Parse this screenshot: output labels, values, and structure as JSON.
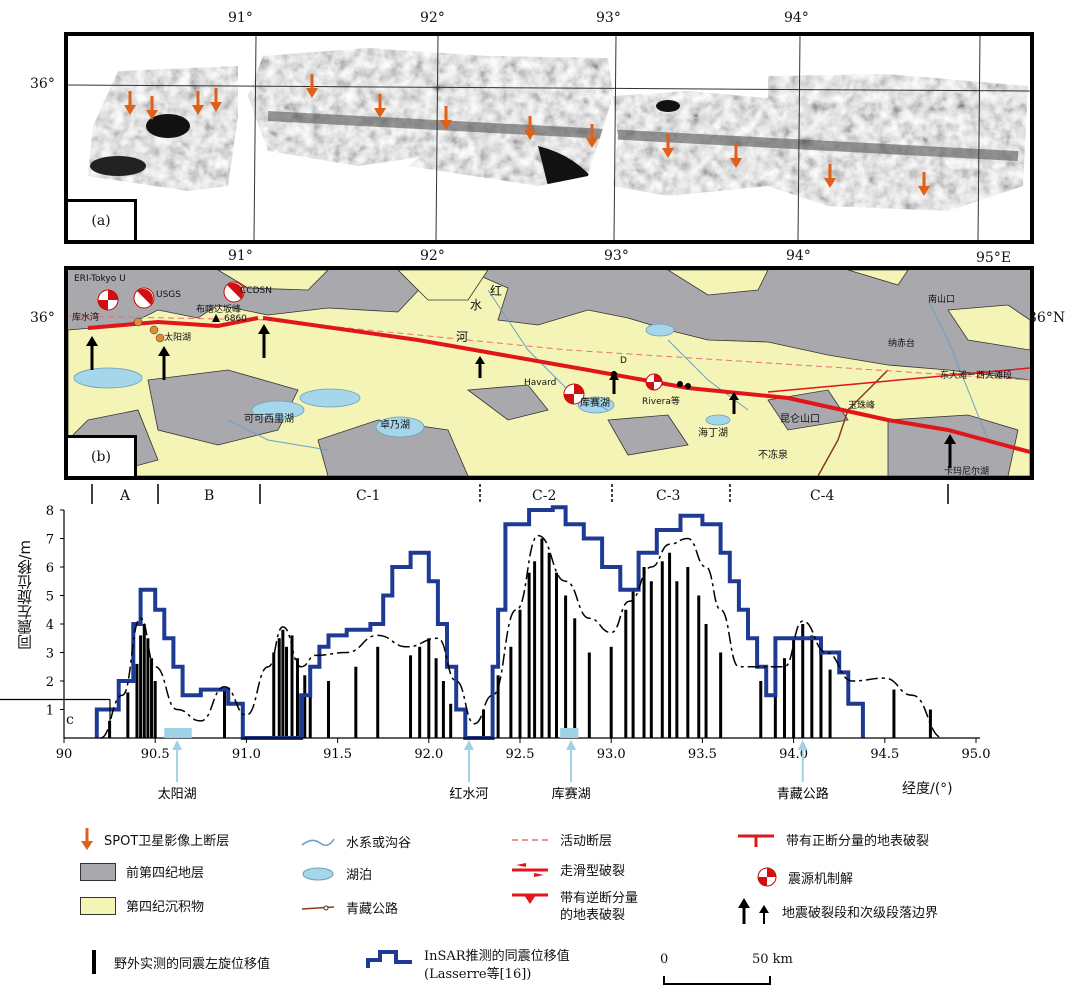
{
  "panel_a": {
    "label": "(a)",
    "lon_labels": [
      "91°",
      "92°",
      "93°",
      "94°"
    ],
    "lat_label": "36°",
    "arrow_color": "#e0601a"
  },
  "panel_b": {
    "label": "(b)",
    "lon_labels": [
      "91°",
      "92°",
      "93°",
      "94°",
      "95°E"
    ],
    "lat_left": "36°",
    "lat_right": "36°N",
    "place_names": {
      "kushuiwan": "库水湾",
      "taiyanghu": "太阳湖",
      "bukadaban": "布喀达坂峰",
      "peak_height": "6860",
      "kekexili": "可可西里湖",
      "zhuonaihu": "卓乃湖",
      "hongshui_hong": "红",
      "hongshui_shui": "水",
      "hongshui_he": "河",
      "kusaihu": "库赛湖",
      "haidinghu": "海丁湖",
      "kunlunshankou": "昆仑山口",
      "budongquan": "不冻泉",
      "nashanmouth": "南山口",
      "nachitai": "纳赤台",
      "dongdatan": "东大滩－西大滩段",
      "yuzhufeng": "玉珠峰",
      "kamaerni": "卡玛尼尔湖",
      "label_d": "D"
    },
    "mechanisms": {
      "eri": "ERI-Tokyo U",
      "usgs": "USGS",
      "ccdsn": "CCDSN",
      "havard": "Havard",
      "rivera": "Rivera等"
    },
    "colors": {
      "gray": "#a9a8ad",
      "yellow": "#f4f4b6",
      "lake": "#a6d6ea",
      "fault": "#e0161b"
    }
  },
  "segments": {
    "labels": [
      "A",
      "B",
      "C-1",
      "C-2",
      "C-3",
      "C-4"
    ]
  },
  "chart_data": {
    "type": "line",
    "ylabel": "同震左旋位移/m",
    "xlabel": "经度/(°)",
    "xlim": [
      90,
      95
    ],
    "ylim": [
      0,
      8
    ],
    "x_ticks": [
      "90",
      "90.5",
      "91.0",
      "91.5",
      "92.0",
      "92.5",
      "93.0",
      "93.5",
      "94.0",
      "94.5",
      "95.0"
    ],
    "y_ticks": [
      "1",
      "2",
      "3",
      "4",
      "5",
      "6",
      "7",
      "8"
    ],
    "c_label": "c",
    "landmarks": [
      {
        "label": "太阳湖",
        "lon": 90.62
      },
      {
        "label": "红水河",
        "lon": 92.22
      },
      {
        "label": "库赛湖",
        "lon": 92.78
      },
      {
        "label": "青藏公路",
        "lon": 94.05
      }
    ],
    "insar": [
      [
        90.18,
        0
      ],
      [
        90.18,
        1
      ],
      [
        90.3,
        1
      ],
      [
        90.3,
        2
      ],
      [
        90.38,
        2
      ],
      [
        90.38,
        4
      ],
      [
        90.42,
        4
      ],
      [
        90.42,
        5.2
      ],
      [
        90.5,
        5.2
      ],
      [
        90.5,
        4.5
      ],
      [
        90.55,
        4.5
      ],
      [
        90.55,
        3.5
      ],
      [
        90.6,
        3.5
      ],
      [
        90.6,
        2.5
      ],
      [
        90.65,
        2.5
      ],
      [
        90.65,
        1.5
      ],
      [
        90.75,
        1.5
      ],
      [
        90.75,
        1.7
      ],
      [
        90.9,
        1.7
      ],
      [
        90.9,
        1.2
      ],
      [
        90.98,
        1.2
      ],
      [
        90.98,
        0
      ],
      [
        91.3,
        0
      ],
      [
        91.3,
        1.5
      ],
      [
        91.35,
        1.5
      ],
      [
        91.35,
        2.5
      ],
      [
        91.4,
        2.5
      ],
      [
        91.4,
        3.2
      ],
      [
        91.45,
        3.2
      ],
      [
        91.45,
        3.6
      ],
      [
        91.55,
        3.6
      ],
      [
        91.55,
        3.8
      ],
      [
        91.68,
        3.8
      ],
      [
        91.68,
        4.0
      ],
      [
        91.75,
        4.0
      ],
      [
        91.75,
        5.0
      ],
      [
        91.8,
        5.0
      ],
      [
        91.8,
        6.0
      ],
      [
        91.9,
        6.0
      ],
      [
        91.9,
        6.5
      ],
      [
        92.0,
        6.5
      ],
      [
        92.0,
        5.5
      ],
      [
        92.05,
        5.5
      ],
      [
        92.05,
        4.0
      ],
      [
        92.1,
        4.0
      ],
      [
        92.1,
        2.5
      ],
      [
        92.15,
        2.5
      ],
      [
        92.15,
        1.0
      ],
      [
        92.2,
        1.0
      ],
      [
        92.2,
        0
      ],
      [
        92.35,
        0
      ],
      [
        92.35,
        2.5
      ],
      [
        92.38,
        2.5
      ],
      [
        92.38,
        4.5
      ],
      [
        92.42,
        4.5
      ],
      [
        92.42,
        7.5
      ],
      [
        92.55,
        7.5
      ],
      [
        92.55,
        8.0
      ],
      [
        92.68,
        8.0
      ],
      [
        92.68,
        8.1
      ],
      [
        92.75,
        8.1
      ],
      [
        92.75,
        7.5
      ],
      [
        92.85,
        7.5
      ],
      [
        92.85,
        7.0
      ],
      [
        92.95,
        7.0
      ],
      [
        92.95,
        6.0
      ],
      [
        93.05,
        6.0
      ],
      [
        93.05,
        5.2
      ],
      [
        93.15,
        5.2
      ],
      [
        93.15,
        6.5
      ],
      [
        93.25,
        6.5
      ],
      [
        93.25,
        7.3
      ],
      [
        93.38,
        7.3
      ],
      [
        93.38,
        7.8
      ],
      [
        93.5,
        7.8
      ],
      [
        93.5,
        7.5
      ],
      [
        93.6,
        7.5
      ],
      [
        93.6,
        6.5
      ],
      [
        93.65,
        6.5
      ],
      [
        93.65,
        5.5
      ],
      [
        93.7,
        5.5
      ],
      [
        93.7,
        4.5
      ],
      [
        93.75,
        4.5
      ],
      [
        93.75,
        3.5
      ],
      [
        93.8,
        3.5
      ],
      [
        93.8,
        2.5
      ],
      [
        93.85,
        2.5
      ],
      [
        93.85,
        1.5
      ],
      [
        93.9,
        1.5
      ],
      [
        93.9,
        3.5
      ],
      [
        94.15,
        3.5
      ],
      [
        94.15,
        3.0
      ],
      [
        94.25,
        3.0
      ],
      [
        94.25,
        2.3
      ],
      [
        94.3,
        2.3
      ],
      [
        94.3,
        1.2
      ],
      [
        94.38,
        1.2
      ],
      [
        94.38,
        0
      ]
    ],
    "model": [
      [
        90.2,
        0
      ],
      [
        90.32,
        1.5
      ],
      [
        90.42,
        4.2
      ],
      [
        90.5,
        2.5
      ],
      [
        90.62,
        1.0
      ],
      [
        90.75,
        0.6
      ],
      [
        90.88,
        1.8
      ],
      [
        91.0,
        0.8
      ],
      [
        91.12,
        2.5
      ],
      [
        91.2,
        3.9
      ],
      [
        91.3,
        2.5
      ],
      [
        91.38,
        2.9
      ],
      [
        91.55,
        3.0
      ],
      [
        91.72,
        3.6
      ],
      [
        91.88,
        3.2
      ],
      [
        92.05,
        3.5
      ],
      [
        92.15,
        2.0
      ],
      [
        92.25,
        0.5
      ],
      [
        92.35,
        1.5
      ],
      [
        92.48,
        4.5
      ],
      [
        92.6,
        7.1
      ],
      [
        92.75,
        5.5
      ],
      [
        92.88,
        4.2
      ],
      [
        93.0,
        3.7
      ],
      [
        93.1,
        4.8
      ],
      [
        93.22,
        6.0
      ],
      [
        93.32,
        6.8
      ],
      [
        93.42,
        7.0
      ],
      [
        93.52,
        6.0
      ],
      [
        93.6,
        4.5
      ],
      [
        93.7,
        2.5
      ],
      [
        93.82,
        2.5
      ],
      [
        93.95,
        2.5
      ],
      [
        94.05,
        4.1
      ],
      [
        94.18,
        3.0
      ],
      [
        94.32,
        2.0
      ],
      [
        94.5,
        2.1
      ],
      [
        94.65,
        1.5
      ],
      [
        94.82,
        0
      ]
    ],
    "field": [
      [
        90.25,
        0.6
      ],
      [
        90.35,
        1.6
      ],
      [
        90.4,
        2.6
      ],
      [
        90.42,
        3.6
      ],
      [
        90.44,
        4.0
      ],
      [
        90.46,
        3.5
      ],
      [
        90.48,
        2.8
      ],
      [
        90.5,
        2.0
      ],
      [
        90.88,
        1.7
      ],
      [
        91.15,
        3.0
      ],
      [
        91.18,
        3.5
      ],
      [
        91.2,
        3.8
      ],
      [
        91.22,
        3.2
      ],
      [
        91.25,
        3.6
      ],
      [
        91.28,
        2.8
      ],
      [
        91.32,
        2.2
      ],
      [
        91.35,
        1.5
      ],
      [
        91.45,
        2.0
      ],
      [
        91.6,
        2.5
      ],
      [
        91.72,
        3.2
      ],
      [
        91.9,
        2.9
      ],
      [
        91.95,
        3.2
      ],
      [
        92.0,
        3.5
      ],
      [
        92.04,
        2.8
      ],
      [
        92.08,
        2.0
      ],
      [
        92.12,
        1.2
      ],
      [
        92.3,
        1.0
      ],
      [
        92.38,
        2.2
      ],
      [
        92.45,
        3.2
      ],
      [
        92.5,
        4.5
      ],
      [
        92.55,
        5.8
      ],
      [
        92.58,
        6.2
      ],
      [
        92.62,
        7.0
      ],
      [
        92.66,
        6.5
      ],
      [
        92.7,
        5.8
      ],
      [
        92.75,
        5.0
      ],
      [
        92.8,
        4.2
      ],
      [
        92.88,
        3.0
      ],
      [
        93.0,
        3.2
      ],
      [
        93.08,
        4.5
      ],
      [
        93.12,
        5.2
      ],
      [
        93.18,
        6.0
      ],
      [
        93.22,
        5.5
      ],
      [
        93.28,
        6.2
      ],
      [
        93.32,
        6.5
      ],
      [
        93.36,
        5.5
      ],
      [
        93.42,
        6.0
      ],
      [
        93.48,
        5.0
      ],
      [
        93.52,
        4.0
      ],
      [
        93.6,
        3.0
      ],
      [
        93.82,
        2.0
      ],
      [
        93.9,
        2.2
      ],
      [
        93.95,
        2.8
      ],
      [
        94.0,
        3.5
      ],
      [
        94.05,
        4.0
      ],
      [
        94.1,
        3.6
      ],
      [
        94.15,
        3.0
      ],
      [
        94.2,
        2.4
      ],
      [
        94.55,
        1.7
      ],
      [
        94.75,
        1.0
      ]
    ],
    "colors": {
      "insar": "#1f3a93",
      "model": "#000000",
      "field": "#000000",
      "landmark": "#9fd2e4"
    }
  },
  "legend": {
    "spot": "SPOT卫星影像上断层",
    "pre_quaternary": "前第四纪地层",
    "quaternary": "第四纪沉积物",
    "river": "水系或沟谷",
    "lake": "湖泊",
    "highway": "青藏公路",
    "active_fault": "活动断层",
    "strike_slip": "走滑型破裂",
    "reverse": "带有逆断分量",
    "reverse2": "的地表破裂",
    "normal": "带有正断分量的地表破裂",
    "focal": "震源机制解",
    "boundary": "地震破裂段和次级段落边界",
    "field_measured": "野外实测的同震左旋位移值",
    "insar_line1": "InSAR推测的同震位移值",
    "insar_line2": "(Lasserre等[16])",
    "scale_zero": "0",
    "scale_50": "50 km"
  }
}
